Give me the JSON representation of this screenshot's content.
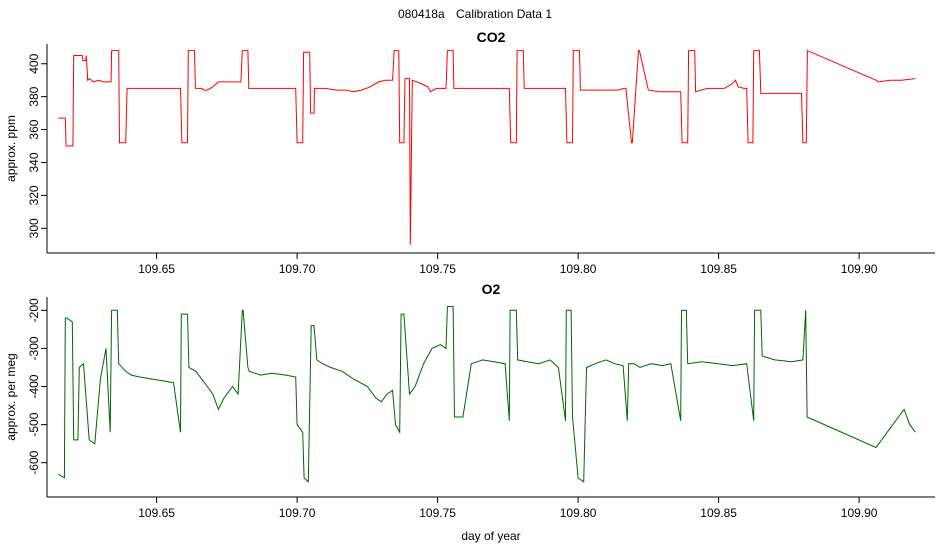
{
  "page": {
    "run_id": "080418a",
    "title": "Calibration Data 1"
  },
  "chart_data": [
    {
      "type": "line",
      "title": "CO2",
      "xlabel": "",
      "ylabel": "approx. ppm",
      "xlim": [
        109.611,
        109.927
      ],
      "ylim": [
        285,
        412
      ],
      "xticks": [
        109.65,
        109.7,
        109.75,
        109.8,
        109.85,
        109.9
      ],
      "xtick_labels": [
        "109.65",
        "109.70",
        "109.75",
        "109.80",
        "109.85",
        "109.90"
      ],
      "yticks": [
        300,
        320,
        340,
        360,
        380,
        400
      ],
      "ytick_labels": [
        "300",
        "320",
        "340",
        "360",
        "380",
        "400"
      ],
      "color": "#ff0000",
      "series": [
        {
          "x": [
            109.615,
            109.6175,
            109.6178,
            109.6202,
            109.6205,
            109.622,
            109.6235,
            109.6238,
            109.6248,
            109.625,
            109.6255,
            109.6262,
            109.6275,
            109.6295,
            109.631,
            109.6325,
            109.6338,
            109.634,
            109.6365,
            109.6368,
            109.6385,
            109.639,
            109.6395,
            109.642,
            109.648,
            109.654,
            109.6585,
            109.659,
            109.661,
            109.6613,
            109.6635,
            109.6638,
            109.666,
            109.667,
            109.668,
            109.67,
            109.672,
            109.6745,
            109.678,
            109.68,
            109.6805,
            109.6825,
            109.6828,
            109.6848,
            109.6852,
            109.69,
            109.696,
            109.6995,
            109.7,
            109.702,
            109.7023,
            109.7045,
            109.7048,
            109.706,
            109.7062,
            109.708,
            109.71,
            109.714,
            109.7175,
            109.72,
            109.723,
            109.726,
            109.729,
            109.7315,
            109.734,
            109.7345,
            109.7362,
            109.7365,
            109.738,
            109.7384,
            109.74,
            109.7403,
            109.741,
            109.744,
            109.7465,
            109.7475,
            109.7495,
            109.753,
            109.7535,
            109.7555,
            109.7558,
            109.758,
            109.7585,
            109.765,
            109.772,
            109.7755,
            109.776,
            109.778,
            109.7783,
            109.7805,
            109.7808,
            109.787,
            109.793,
            109.7955,
            109.796,
            109.798,
            109.7983,
            109.8005,
            109.8008,
            109.808,
            109.814,
            109.8165,
            109.817,
            109.819,
            109.8193,
            109.8215,
            109.8218,
            109.825,
            109.829,
            109.834,
            109.8365,
            109.837,
            109.839,
            109.8393,
            109.8415,
            109.8418,
            109.846,
            109.852,
            109.855,
            109.856,
            109.857,
            109.859,
            109.86,
            109.8605,
            109.8622,
            109.8625,
            109.8645,
            109.865,
            109.868,
            109.874,
            109.8795,
            109.88,
            109.8812,
            109.8816,
            109.906,
            109.907,
            109.911,
            109.915,
            109.92
          ],
          "y": [
            367,
            367,
            350,
            350,
            405,
            405,
            405,
            402,
            402,
            405,
            390,
            391,
            389,
            390,
            389,
            389,
            389,
            408,
            408,
            352,
            352,
            352,
            385,
            385,
            385,
            385,
            385,
            352,
            352,
            408,
            408,
            385,
            385,
            384,
            384,
            386,
            389,
            389,
            389,
            389,
            408,
            408,
            385,
            385,
            385,
            385,
            385,
            385,
            352,
            352,
            407,
            407,
            370,
            370,
            385,
            385,
            385,
            384,
            384,
            383,
            384,
            386,
            389,
            390,
            390,
            408,
            408,
            352,
            352,
            391,
            391,
            290,
            390,
            388,
            386,
            383,
            385,
            385,
            408,
            408,
            385,
            385,
            385,
            385,
            385,
            385,
            352,
            352,
            408,
            408,
            385,
            385,
            385,
            385,
            352,
            352,
            408,
            408,
            384,
            384,
            384,
            385,
            385,
            352,
            352,
            408,
            408,
            384,
            383,
            383,
            383,
            352,
            352,
            408,
            408,
            383,
            385,
            385,
            388,
            390,
            386,
            385,
            385,
            352,
            352,
            408,
            408,
            382,
            382,
            382,
            382,
            352,
            352,
            408,
            390,
            389,
            390,
            390,
            391
          ]
        }
      ]
    },
    {
      "type": "line",
      "title": "O2",
      "xlabel": "day of year",
      "ylabel": "approx. per meg",
      "xlim": [
        109.611,
        109.927
      ],
      "ylim": [
        -690,
        -165
      ],
      "xticks": [
        109.65,
        109.7,
        109.75,
        109.8,
        109.85,
        109.9
      ],
      "xtick_labels": [
        "109.65",
        "109.70",
        "109.75",
        "109.80",
        "109.85",
        "109.90"
      ],
      "yticks": [
        -200,
        -300,
        -400,
        -500,
        -600
      ],
      "ytick_labels": [
        "-200",
        "-300",
        "-400",
        "-500",
        "-600"
      ],
      "color": "#006400",
      "series": [
        {
          "x": [
            109.615,
            109.6172,
            109.6175,
            109.618,
            109.62,
            109.6205,
            109.622,
            109.6225,
            109.624,
            109.626,
            109.628,
            109.63,
            109.632,
            109.6335,
            109.634,
            109.636,
            109.6365,
            109.639,
            109.641,
            109.644,
            109.648,
            109.652,
            109.656,
            109.6585,
            109.6588,
            109.661,
            109.6615,
            109.664,
            109.668,
            109.67,
            109.672,
            109.674,
            109.677,
            109.679,
            109.6805,
            109.6808,
            109.6825,
            109.683,
            109.687,
            109.691,
            109.696,
            109.6995,
            109.7,
            109.702,
            109.7025,
            109.704,
            109.705,
            109.706,
            109.707,
            109.709,
            109.712,
            109.716,
            109.72,
            109.725,
            109.728,
            109.73,
            109.732,
            109.734,
            109.735,
            109.7365,
            109.737,
            109.738,
            109.74,
            109.742,
            109.745,
            109.748,
            109.751,
            109.753,
            109.7535,
            109.7555,
            109.756,
            109.759,
            109.762,
            109.766,
            109.77,
            109.774,
            109.7755,
            109.7758,
            109.778,
            109.7785,
            109.782,
            109.786,
            109.79,
            109.793,
            109.7955,
            109.7958,
            109.7975,
            109.798,
            109.8,
            109.802,
            109.803,
            109.806,
            109.81,
            109.813,
            109.816,
            109.8175,
            109.818,
            109.82,
            109.822,
            109.826,
            109.83,
            109.833,
            109.8365,
            109.8368,
            109.8385,
            109.839,
            109.844,
            109.85,
            109.855,
            109.86,
            109.8625,
            109.8628,
            109.865,
            109.8655,
            109.87,
            109.876,
            109.88,
            109.881,
            109.8815,
            109.906,
            109.908,
            109.91,
            109.912,
            109.914,
            109.916,
            109.918,
            109.92
          ],
          "y": [
            -630,
            -640,
            -220,
            -220,
            -230,
            -540,
            -540,
            -350,
            -340,
            -540,
            -550,
            -380,
            -300,
            -520,
            -200,
            -200,
            -340,
            -360,
            -370,
            -375,
            -380,
            -385,
            -390,
            -520,
            -210,
            -210,
            -350,
            -360,
            -400,
            -420,
            -460,
            -430,
            -400,
            -420,
            -200,
            -200,
            -350,
            -360,
            -370,
            -365,
            -370,
            -375,
            -500,
            -520,
            -640,
            -650,
            -240,
            -240,
            -330,
            -340,
            -350,
            -360,
            -380,
            -400,
            -430,
            -440,
            -420,
            -410,
            -500,
            -520,
            -210,
            -210,
            -420,
            -400,
            -340,
            -300,
            -290,
            -300,
            -190,
            -190,
            -480,
            -480,
            -340,
            -330,
            -335,
            -340,
            -490,
            -200,
            -200,
            -330,
            -335,
            -340,
            -330,
            -350,
            -490,
            -200,
            -200,
            -480,
            -640,
            -650,
            -350,
            -340,
            -330,
            -340,
            -345,
            -490,
            -340,
            -340,
            -350,
            -340,
            -345,
            -340,
            -490,
            -200,
            -200,
            -340,
            -335,
            -340,
            -345,
            -340,
            -490,
            -200,
            -200,
            -320,
            -330,
            -335,
            -330,
            -200,
            -480,
            -560,
            -540,
            -520,
            -500,
            -480,
            -460,
            -500,
            -520
          ]
        }
      ]
    }
  ]
}
